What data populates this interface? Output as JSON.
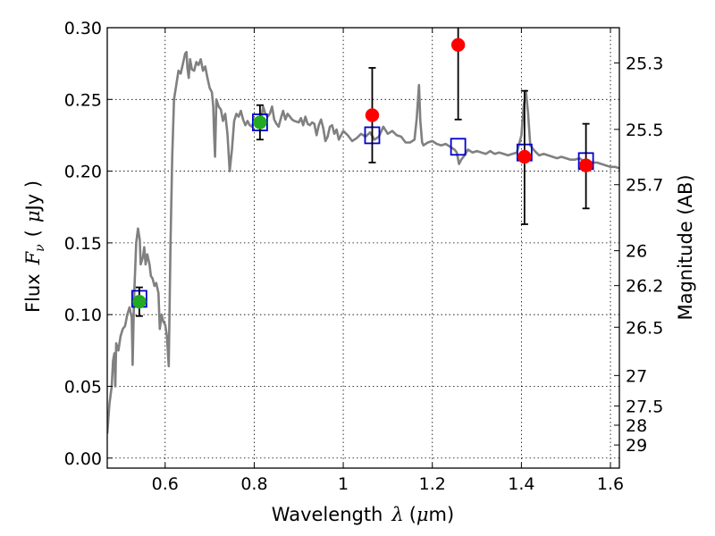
{
  "chart_data": {
    "type": "scatter",
    "xlabel_text": "Wavelength",
    "xlabel_symbol": "λ",
    "xlabel_unit_open": "(",
    "xlabel_unit_mu": "μ",
    "xlabel_unit_close": "m)",
    "ylabel_text": "Flux",
    "ylabel_symbol": "F",
    "ylabel_symbol_sub": "ν",
    "ylabel_unit_open": "(",
    "ylabel_unit_mu": "μ",
    "ylabel_unit_close": "Jy )",
    "y2label": "Magnitude (AB)",
    "xlim": [
      0.47,
      1.62
    ],
    "ylim": [
      -0.007,
      0.3
    ],
    "grid": true,
    "x_ticks": [
      {
        "value": 0.6,
        "label": "0.6"
      },
      {
        "value": 0.8,
        "label": "0.8"
      },
      {
        "value": 1.0,
        "label": "1"
      },
      {
        "value": 1.2,
        "label": "1.2"
      },
      {
        "value": 1.4,
        "label": "1.4"
      },
      {
        "value": 1.6,
        "label": "1.6"
      }
    ],
    "y_ticks": [
      {
        "value": 0.0,
        "label": "0.00"
      },
      {
        "value": 0.05,
        "label": "0.05"
      },
      {
        "value": 0.1,
        "label": "0.10"
      },
      {
        "value": 0.15,
        "label": "0.15"
      },
      {
        "value": 0.2,
        "label": "0.20"
      },
      {
        "value": 0.25,
        "label": "0.25"
      },
      {
        "value": 0.3,
        "label": "0.30"
      }
    ],
    "y2_ticks": [
      {
        "value": 25.3,
        "label": "25.3"
      },
      {
        "value": 25.5,
        "label": "25.5"
      },
      {
        "value": 25.7,
        "label": "25.7"
      },
      {
        "value": 26.0,
        "label": "26"
      },
      {
        "value": 26.2,
        "label": "26.2"
      },
      {
        "value": 26.5,
        "label": "26.5"
      },
      {
        "value": 27.0,
        "label": "27"
      },
      {
        "value": 27.5,
        "label": "27.5"
      },
      {
        "value": 28.0,
        "label": "28"
      },
      {
        "value": 29.0,
        "label": "29"
      }
    ],
    "model_spectrum": {
      "color": "#808080",
      "points": [
        [
          0.47,
          0.017
        ],
        [
          0.475,
          0.038
        ],
        [
          0.48,
          0.05
        ],
        [
          0.483,
          0.068
        ],
        [
          0.486,
          0.073
        ],
        [
          0.488,
          0.05
        ],
        [
          0.49,
          0.08
        ],
        [
          0.495,
          0.075
        ],
        [
          0.5,
          0.085
        ],
        [
          0.505,
          0.09
        ],
        [
          0.51,
          0.092
        ],
        [
          0.515,
          0.1
        ],
        [
          0.52,
          0.105
        ],
        [
          0.525,
          0.098
        ],
        [
          0.527,
          0.065
        ],
        [
          0.53,
          0.11
        ],
        [
          0.535,
          0.15
        ],
        [
          0.539,
          0.16
        ],
        [
          0.543,
          0.152
        ],
        [
          0.545,
          0.135
        ],
        [
          0.55,
          0.14
        ],
        [
          0.553,
          0.147
        ],
        [
          0.556,
          0.135
        ],
        [
          0.56,
          0.142
        ],
        [
          0.565,
          0.135
        ],
        [
          0.568,
          0.127
        ],
        [
          0.572,
          0.125
        ],
        [
          0.576,
          0.12
        ],
        [
          0.58,
          0.122
        ],
        [
          0.585,
          0.115
        ],
        [
          0.588,
          0.09
        ],
        [
          0.592,
          0.1
        ],
        [
          0.596,
          0.095
        ],
        [
          0.6,
          0.093
        ],
        [
          0.604,
          0.085
        ],
        [
          0.608,
          0.064
        ],
        [
          0.612,
          0.15
        ],
        [
          0.616,
          0.21
        ],
        [
          0.62,
          0.25
        ],
        [
          0.63,
          0.27
        ],
        [
          0.635,
          0.268
        ],
        [
          0.64,
          0.275
        ],
        [
          0.645,
          0.282
        ],
        [
          0.648,
          0.283
        ],
        [
          0.65,
          0.272
        ],
        [
          0.653,
          0.265
        ],
        [
          0.656,
          0.278
        ],
        [
          0.66,
          0.271
        ],
        [
          0.665,
          0.27
        ],
        [
          0.67,
          0.276
        ],
        [
          0.675,
          0.274
        ],
        [
          0.68,
          0.278
        ],
        [
          0.685,
          0.27
        ],
        [
          0.69,
          0.273
        ],
        [
          0.695,
          0.265
        ],
        [
          0.7,
          0.258
        ],
        [
          0.705,
          0.255
        ],
        [
          0.708,
          0.245
        ],
        [
          0.71,
          0.225
        ],
        [
          0.712,
          0.21
        ],
        [
          0.715,
          0.25
        ],
        [
          0.72,
          0.245
        ],
        [
          0.725,
          0.243
        ],
        [
          0.73,
          0.235
        ],
        [
          0.735,
          0.24
        ],
        [
          0.74,
          0.226
        ],
        [
          0.745,
          0.2
        ],
        [
          0.75,
          0.215
        ],
        [
          0.755,
          0.235
        ],
        [
          0.76,
          0.24
        ],
        [
          0.765,
          0.238
        ],
        [
          0.77,
          0.242
        ],
        [
          0.775,
          0.236
        ],
        [
          0.78,
          0.232
        ],
        [
          0.785,
          0.235
        ],
        [
          0.79,
          0.232
        ],
        [
          0.795,
          0.231
        ],
        [
          0.8,
          0.236
        ],
        [
          0.81,
          0.233
        ],
        [
          0.815,
          0.235
        ],
        [
          0.82,
          0.245
        ],
        [
          0.825,
          0.24
        ],
        [
          0.83,
          0.238
        ],
        [
          0.835,
          0.24
        ],
        [
          0.84,
          0.245
        ],
        [
          0.845,
          0.236
        ],
        [
          0.85,
          0.233
        ],
        [
          0.855,
          0.231
        ],
        [
          0.86,
          0.237
        ],
        [
          0.865,
          0.242
        ],
        [
          0.87,
          0.236
        ],
        [
          0.875,
          0.24
        ],
        [
          0.88,
          0.238
        ],
        [
          0.885,
          0.236
        ],
        [
          0.89,
          0.235
        ],
        [
          0.9,
          0.234
        ],
        [
          0.905,
          0.237
        ],
        [
          0.91,
          0.232
        ],
        [
          0.915,
          0.238
        ],
        [
          0.92,
          0.233
        ],
        [
          0.925,
          0.232
        ],
        [
          0.93,
          0.234
        ],
        [
          0.935,
          0.233
        ],
        [
          0.94,
          0.225
        ],
        [
          0.945,
          0.232
        ],
        [
          0.95,
          0.236
        ],
        [
          0.955,
          0.23
        ],
        [
          0.96,
          0.221
        ],
        [
          0.965,
          0.224
        ],
        [
          0.97,
          0.231
        ],
        [
          0.975,
          0.232
        ],
        [
          0.98,
          0.226
        ],
        [
          0.985,
          0.229
        ],
        [
          0.99,
          0.222
        ],
        [
          0.995,
          0.225
        ],
        [
          1.0,
          0.228
        ],
        [
          1.01,
          0.225
        ],
        [
          1.02,
          0.221
        ],
        [
          1.03,
          0.223
        ],
        [
          1.04,
          0.226
        ],
        [
          1.05,
          0.224
        ],
        [
          1.06,
          0.227
        ],
        [
          1.07,
          0.222
        ],
        [
          1.08,
          0.224
        ],
        [
          1.09,
          0.231
        ],
        [
          1.1,
          0.226
        ],
        [
          1.11,
          0.228
        ],
        [
          1.12,
          0.225
        ],
        [
          1.13,
          0.224
        ],
        [
          1.14,
          0.22
        ],
        [
          1.15,
          0.22
        ],
        [
          1.16,
          0.222
        ],
        [
          1.165,
          0.237
        ],
        [
          1.17,
          0.26
        ],
        [
          1.173,
          0.235
        ],
        [
          1.177,
          0.22
        ],
        [
          1.18,
          0.218
        ],
        [
          1.19,
          0.22
        ],
        [
          1.2,
          0.221
        ],
        [
          1.21,
          0.219
        ],
        [
          1.22,
          0.218
        ],
        [
          1.23,
          0.219
        ],
        [
          1.24,
          0.217
        ],
        [
          1.25,
          0.215
        ],
        [
          1.255,
          0.213
        ],
        [
          1.26,
          0.205
        ],
        [
          1.265,
          0.208
        ],
        [
          1.27,
          0.21
        ],
        [
          1.28,
          0.215
        ],
        [
          1.29,
          0.213
        ],
        [
          1.3,
          0.214
        ],
        [
          1.31,
          0.213
        ],
        [
          1.32,
          0.212
        ],
        [
          1.33,
          0.214
        ],
        [
          1.34,
          0.212
        ],
        [
          1.35,
          0.213
        ],
        [
          1.36,
          0.212
        ],
        [
          1.37,
          0.211
        ],
        [
          1.38,
          0.212
        ],
        [
          1.39,
          0.213
        ],
        [
          1.4,
          0.225
        ],
        [
          1.405,
          0.245
        ],
        [
          1.41,
          0.256
        ],
        [
          1.415,
          0.24
        ],
        [
          1.42,
          0.218
        ],
        [
          1.43,
          0.214
        ],
        [
          1.44,
          0.211
        ],
        [
          1.45,
          0.212
        ],
        [
          1.46,
          0.211
        ],
        [
          1.47,
          0.21
        ],
        [
          1.48,
          0.209
        ],
        [
          1.49,
          0.21
        ],
        [
          1.5,
          0.209
        ],
        [
          1.51,
          0.208
        ],
        [
          1.52,
          0.208
        ],
        [
          1.53,
          0.209
        ],
        [
          1.54,
          0.207
        ],
        [
          1.55,
          0.207
        ],
        [
          1.56,
          0.206
        ],
        [
          1.57,
          0.206
        ],
        [
          1.58,
          0.205
        ],
        [
          1.59,
          0.204
        ],
        [
          1.6,
          0.203
        ],
        [
          1.61,
          0.203
        ],
        [
          1.62,
          0.202
        ]
      ]
    },
    "series": [
      {
        "marker": "open-square",
        "color": "#0000cc",
        "points": [
          {
            "x": 0.542,
            "y": 0.111
          },
          {
            "x": 0.813,
            "y": 0.234
          },
          {
            "x": 1.065,
            "y": 0.225
          },
          {
            "x": 1.258,
            "y": 0.217
          },
          {
            "x": 1.407,
            "y": 0.213
          },
          {
            "x": 1.545,
            "y": 0.207
          }
        ]
      },
      {
        "marker": "green-circle",
        "color": "#22aa22",
        "points": [
          {
            "x": 0.542,
            "y": 0.109,
            "yerr_low": 0.099,
            "yerr_high": 0.119
          },
          {
            "x": 0.813,
            "y": 0.234,
            "yerr_low": 0.222,
            "yerr_high": 0.246
          }
        ]
      },
      {
        "marker": "red-circle",
        "color": "#ff0000",
        "points": [
          {
            "x": 1.065,
            "y": 0.239,
            "yerr_low": 0.206,
            "yerr_high": 0.272
          },
          {
            "x": 1.258,
            "y": 0.288,
            "yerr_low": 0.236,
            "yerr_high": 0.301
          },
          {
            "x": 1.407,
            "y": 0.21,
            "yerr_low": 0.163,
            "yerr_high": 0.256
          },
          {
            "x": 1.545,
            "y": 0.204,
            "yerr_low": 0.174,
            "yerr_high": 0.233
          }
        ]
      }
    ]
  }
}
